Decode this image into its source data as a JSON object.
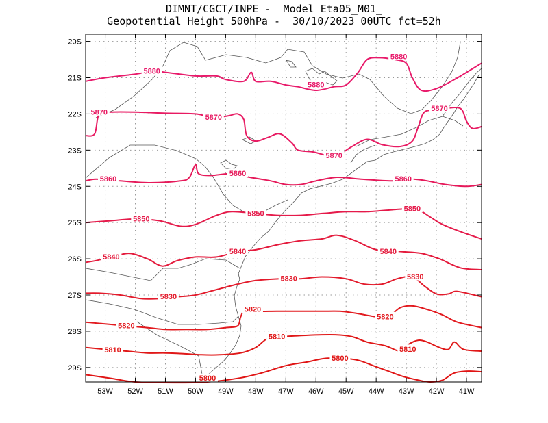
{
  "title": {
    "line1": "DIMNT/CGCT/INPE -  Model Eta05_M01_",
    "line2": "Geopotential Height 500hPa -  30/10/2023 00UTC fct=52h"
  },
  "axes": {
    "lat_labels": [
      "20S",
      "21S",
      "22S",
      "23S",
      "24S",
      "25S",
      "26S",
      "27S",
      "28S",
      "29S"
    ],
    "lat_values": [
      -20,
      -21,
      -22,
      -23,
      -24,
      -25,
      -26,
      -27,
      -28,
      -29
    ],
    "lon_labels": [
      "53W",
      "52W",
      "51W",
      "50W",
      "49W",
      "48W",
      "47W",
      "46W",
      "45W",
      "44W",
      "43W",
      "42W",
      "41W"
    ],
    "lon_values": [
      -53,
      -52,
      -51,
      -50,
      -49,
      -48,
      -47,
      -46,
      -45,
      -44,
      -43,
      -42,
      -41
    ],
    "lon_range": [
      -53.65,
      -40.5
    ],
    "lat_range": [
      -29.4,
      -19.8
    ],
    "grid": true
  },
  "colors": {
    "c5880": "#e8196a",
    "c5870": "#e81a62",
    "c5860": "#e6195a",
    "c5850": "#e51a4a",
    "c5840": "#e41a3c",
    "c5830": "#e31b2c",
    "c5820": "#e21a1f",
    "c5810": "#e01818",
    "c5800": "#e01414",
    "coast": "#555555"
  },
  "contours": [
    {
      "value": 5880,
      "label": "5880",
      "color": "c5880",
      "points": [
        [
          -53.65,
          -21.1
        ],
        [
          -53,
          -21.0
        ],
        [
          -52,
          -20.9
        ],
        [
          -51.4,
          -20.82
        ],
        [
          -51,
          -20.85
        ],
        [
          -50,
          -20.95
        ],
        [
          -49.3,
          -20.95
        ],
        [
          -49,
          -21.05
        ],
        [
          -48.4,
          -21.1
        ],
        [
          -48.15,
          -20.85
        ],
        [
          -48.0,
          -21.1
        ],
        [
          -47.5,
          -21.1
        ],
        [
          -47,
          -21.2
        ],
        [
          -46.6,
          -21.25
        ],
        [
          -46,
          -21.35
        ],
        [
          -45.4,
          -21.25
        ],
        [
          -45,
          -21.2
        ],
        [
          -44.6,
          -20.85
        ],
        [
          -44.3,
          -20.5
        ],
        [
          -43.9,
          -20.45
        ],
        [
          -43.4,
          -20.5
        ],
        [
          -43,
          -20.6
        ],
        [
          -42.8,
          -21.0
        ],
        [
          -42.5,
          -21.35
        ],
        [
          -42.0,
          -21.3
        ],
        [
          -41.4,
          -21.05
        ],
        [
          -40.5,
          -20.6
        ]
      ],
      "labels": [
        [
          -51.45,
          -20.82
        ],
        [
          -46.0,
          -21.2
        ],
        [
          -43.25,
          -20.42
        ]
      ]
    },
    {
      "value": 5870,
      "label": "5870",
      "color": "c5870",
      "points": [
        [
          -53.65,
          -22.6
        ],
        [
          -53.35,
          -22.55
        ],
        [
          -53.2,
          -22.0
        ],
        [
          -52.8,
          -21.95
        ],
        [
          -52,
          -21.95
        ],
        [
          -51,
          -21.98
        ],
        [
          -50,
          -22.0
        ],
        [
          -49.4,
          -22.1
        ],
        [
          -48.9,
          -22.05
        ],
        [
          -48.6,
          -22.0
        ],
        [
          -48.4,
          -22.15
        ],
        [
          -48.3,
          -22.6
        ],
        [
          -48.0,
          -22.75
        ],
        [
          -47.6,
          -22.65
        ],
        [
          -47.2,
          -22.55
        ],
        [
          -46.8,
          -22.8
        ],
        [
          -46.6,
          -23.0
        ],
        [
          -46.1,
          -23.05
        ],
        [
          -45.6,
          -23.15
        ],
        [
          -45.2,
          -23.1
        ],
        [
          -44.8,
          -22.9
        ],
        [
          -44.3,
          -22.7
        ],
        [
          -43.8,
          -22.85
        ],
        [
          -43.2,
          -22.9
        ],
        [
          -42.8,
          -22.75
        ],
        [
          -42.6,
          -22.35
        ],
        [
          -42.4,
          -21.95
        ],
        [
          -42.0,
          -21.9
        ],
        [
          -41.7,
          -21.85
        ],
        [
          -41.2,
          -21.85
        ],
        [
          -41.0,
          -22.2
        ],
        [
          -40.8,
          -22.4
        ],
        [
          -40.5,
          -22.35
        ]
      ],
      "labels": [
        [
          -53.2,
          -21.95
        ],
        [
          -49.4,
          -22.1
        ],
        [
          -45.4,
          -23.15
        ],
        [
          -41.9,
          -21.85
        ]
      ]
    },
    {
      "value": 5860,
      "label": "5860",
      "color": "c5860",
      "points": [
        [
          -53.65,
          -23.85
        ],
        [
          -53.3,
          -23.8
        ],
        [
          -52.5,
          -23.85
        ],
        [
          -51.5,
          -23.9
        ],
        [
          -50.5,
          -23.85
        ],
        [
          -50.2,
          -23.75
        ],
        [
          -50.0,
          -23.4
        ],
        [
          -49.9,
          -23.65
        ],
        [
          -49.5,
          -23.7
        ],
        [
          -48.8,
          -23.65
        ],
        [
          -48.2,
          -23.75
        ],
        [
          -47.5,
          -23.85
        ],
        [
          -47.0,
          -23.95
        ],
        [
          -46.5,
          -23.95
        ],
        [
          -46.0,
          -23.85
        ],
        [
          -45.3,
          -23.75
        ],
        [
          -44.5,
          -23.8
        ],
        [
          -43.5,
          -23.85
        ],
        [
          -42.8,
          -23.8
        ],
        [
          -42.3,
          -23.85
        ],
        [
          -41.7,
          -23.95
        ],
        [
          -41.0,
          -24.0
        ],
        [
          -40.5,
          -23.95
        ]
      ],
      "labels": [
        [
          -52.9,
          -23.8
        ],
        [
          -48.6,
          -23.65
        ],
        [
          -43.1,
          -23.8
        ]
      ]
    },
    {
      "value": 5850,
      "label": "5850",
      "color": "c5850",
      "points": [
        [
          -53.65,
          -25.0
        ],
        [
          -52.8,
          -24.95
        ],
        [
          -52,
          -24.9
        ],
        [
          -51.2,
          -24.95
        ],
        [
          -50.5,
          -25.1
        ],
        [
          -50.0,
          -25.05
        ],
        [
          -49.3,
          -24.8
        ],
        [
          -48.8,
          -24.7
        ],
        [
          -48.0,
          -24.75
        ],
        [
          -47.3,
          -24.8
        ],
        [
          -46.5,
          -24.8
        ],
        [
          -45.8,
          -24.75
        ],
        [
          -45.0,
          -24.7
        ],
        [
          -44.3,
          -24.7
        ],
        [
          -43.5,
          -24.65
        ],
        [
          -43.0,
          -24.62
        ],
        [
          -42.6,
          -24.65
        ],
        [
          -42.2,
          -24.85
        ],
        [
          -41.8,
          -25.05
        ],
        [
          -41.2,
          -25.25
        ],
        [
          -40.5,
          -25.45
        ]
      ],
      "labels": [
        [
          -51.8,
          -24.9
        ],
        [
          -48.0,
          -24.75
        ],
        [
          -42.8,
          -24.62
        ]
      ]
    },
    {
      "value": 5840,
      "label": "5840",
      "color": "c5840",
      "points": [
        [
          -53.65,
          -26.1
        ],
        [
          -53.3,
          -26.05
        ],
        [
          -52.8,
          -25.95
        ],
        [
          -52.2,
          -25.85
        ],
        [
          -51.6,
          -26.0
        ],
        [
          -51.1,
          -26.2
        ],
        [
          -50.6,
          -26.05
        ],
        [
          -50.0,
          -25.95
        ],
        [
          -49.3,
          -25.95
        ],
        [
          -48.6,
          -25.8
        ],
        [
          -48.0,
          -25.75
        ],
        [
          -47.2,
          -25.6
        ],
        [
          -46.5,
          -25.5
        ],
        [
          -45.8,
          -25.45
        ],
        [
          -45.3,
          -25.35
        ],
        [
          -44.7,
          -25.5
        ],
        [
          -44.0,
          -25.75
        ],
        [
          -43.2,
          -25.8
        ],
        [
          -42.5,
          -25.85
        ],
        [
          -41.9,
          -26.0
        ],
        [
          -41.2,
          -26.25
        ],
        [
          -40.5,
          -26.3
        ]
      ],
      "labels": [
        [
          -52.8,
          -25.95
        ],
        [
          -48.6,
          -25.8
        ],
        [
          -43.6,
          -25.8
        ]
      ]
    },
    {
      "value": 5830,
      "label": "5830",
      "color": "c5830",
      "points": [
        [
          -53.65,
          -26.95
        ],
        [
          -53.2,
          -26.95
        ],
        [
          -52.5,
          -27.0
        ],
        [
          -51.8,
          -27.1
        ],
        [
          -51.2,
          -27.1
        ],
        [
          -50.6,
          -27.05
        ],
        [
          -50.0,
          -27.0
        ],
        [
          -49.3,
          -26.85
        ],
        [
          -48.6,
          -26.7
        ],
        [
          -48.0,
          -26.6
        ],
        [
          -47.2,
          -26.55
        ],
        [
          -46.5,
          -26.55
        ],
        [
          -45.8,
          -26.5
        ],
        [
          -45.0,
          -26.55
        ],
        [
          -44.4,
          -26.7
        ],
        [
          -43.8,
          -26.7
        ],
        [
          -43.3,
          -26.55
        ],
        [
          -42.8,
          -26.5
        ],
        [
          -42.4,
          -26.75
        ],
        [
          -42.0,
          -26.97
        ],
        [
          -41.6,
          -26.97
        ],
        [
          -41.3,
          -26.9
        ],
        [
          -40.5,
          -27.05
        ]
      ],
      "labels": [
        [
          -50.9,
          -27.05
        ],
        [
          -46.9,
          -26.55
        ],
        [
          -42.7,
          -26.5
        ]
      ]
    },
    {
      "value": 5820,
      "label": "5820",
      "color": "c5820",
      "points": [
        [
          -53.65,
          -27.75
        ],
        [
          -53.0,
          -27.8
        ],
        [
          -52.3,
          -27.85
        ],
        [
          -51.6,
          -27.9
        ],
        [
          -51.0,
          -27.95
        ],
        [
          -50.3,
          -27.95
        ],
        [
          -49.6,
          -27.95
        ],
        [
          -49.0,
          -27.9
        ],
        [
          -48.6,
          -27.85
        ],
        [
          -48.5,
          -27.6
        ],
        [
          -48.35,
          -27.4
        ],
        [
          -48.0,
          -27.45
        ],
        [
          -47.3,
          -27.45
        ],
        [
          -46.5,
          -27.45
        ],
        [
          -45.8,
          -27.45
        ],
        [
          -45.2,
          -27.45
        ],
        [
          -44.7,
          -27.5
        ],
        [
          -44.0,
          -27.6
        ],
        [
          -43.6,
          -27.6
        ],
        [
          -43.2,
          -27.35
        ],
        [
          -42.8,
          -27.3
        ],
        [
          -42.3,
          -27.4
        ],
        [
          -41.8,
          -27.55
        ],
        [
          -41.3,
          -27.75
        ],
        [
          -40.5,
          -27.9
        ]
      ],
      "labels": [
        [
          -52.3,
          -27.85
        ],
        [
          -48.1,
          -27.4
        ],
        [
          -43.7,
          -27.6
        ]
      ]
    },
    {
      "value": 5810,
      "label": "5810",
      "color": "c5810",
      "points": [
        [
          -53.65,
          -28.45
        ],
        [
          -53.0,
          -28.5
        ],
        [
          -52.3,
          -28.55
        ],
        [
          -51.6,
          -28.6
        ],
        [
          -51.0,
          -28.6
        ],
        [
          -50.4,
          -28.62
        ],
        [
          -49.8,
          -28.65
        ],
        [
          -49.2,
          -28.65
        ],
        [
          -48.5,
          -28.6
        ],
        [
          -48.0,
          -28.45
        ],
        [
          -47.6,
          -28.2
        ],
        [
          -47.1,
          -28.15
        ],
        [
          -46.5,
          -28.12
        ],
        [
          -45.9,
          -28.1
        ],
        [
          -45.3,
          -28.1
        ],
        [
          -44.8,
          -28.15
        ],
        [
          -44.3,
          -28.3
        ],
        [
          -43.7,
          -28.4
        ],
        [
          -43.2,
          -28.55
        ],
        [
          -42.9,
          -28.35
        ],
        [
          -42.6,
          -28.25
        ],
        [
          -42.3,
          -28.3
        ],
        [
          -41.9,
          -28.45
        ],
        [
          -41.6,
          -28.5
        ],
        [
          -41.4,
          -28.3
        ],
        [
          -41.1,
          -28.5
        ],
        [
          -40.5,
          -28.55
        ]
      ],
      "labels": [
        [
          -52.75,
          -28.52
        ],
        [
          -47.3,
          -28.15
        ],
        [
          -42.95,
          -28.5
        ]
      ]
    },
    {
      "value": 5800,
      "label": "5800",
      "color": "c5800",
      "points": [
        [
          -53.65,
          -29.2
        ],
        [
          -52.8,
          -29.3
        ],
        [
          -52.0,
          -29.4
        ],
        [
          -50.5,
          -29.42
        ],
        [
          -49.6,
          -29.4
        ],
        [
          -48.6,
          -29.3
        ],
        [
          -47.8,
          -29.15
        ],
        [
          -47.0,
          -28.95
        ],
        [
          -46.3,
          -28.85
        ],
        [
          -45.7,
          -28.75
        ],
        [
          -45.1,
          -28.75
        ],
        [
          -44.6,
          -28.8
        ],
        [
          -44.1,
          -28.95
        ],
        [
          -43.6,
          -29.1
        ],
        [
          -43.1,
          -29.25
        ],
        [
          -42.6,
          -29.35
        ],
        [
          -42.2,
          -29.4
        ],
        [
          -41.8,
          -29.35
        ],
        [
          -41.4,
          -29.15
        ],
        [
          -40.9,
          -29.1
        ],
        [
          -40.5,
          -29.12
        ]
      ],
      "labels": [
        [
          -49.6,
          -29.3
        ],
        [
          -45.2,
          -28.75
        ]
      ]
    }
  ]
}
